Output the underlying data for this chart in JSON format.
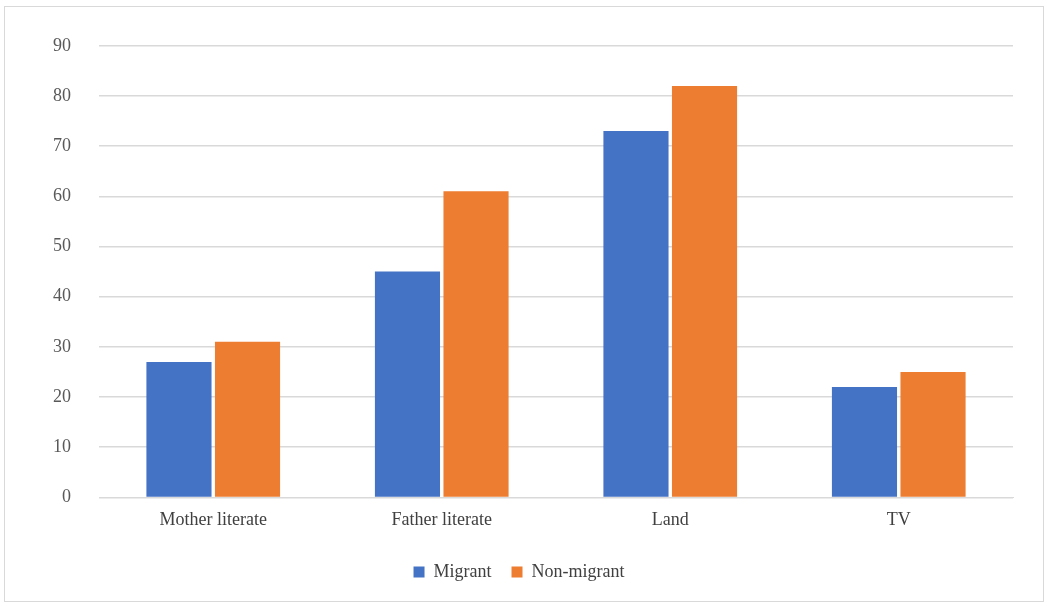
{
  "chart_data": {
    "type": "bar",
    "categories": [
      "Mother literate",
      "Father literate",
      "Land",
      "TV"
    ],
    "series": [
      {
        "name": "Migrant",
        "color": "#4472c4",
        "values": [
          27,
          45,
          73,
          22
        ]
      },
      {
        "name": "Non-migrant",
        "color": "#ed7d31",
        "values": [
          31,
          61,
          82,
          25
        ]
      }
    ],
    "ylim": [
      0,
      90
    ],
    "yticks": [
      0,
      10,
      20,
      30,
      40,
      50,
      60,
      70,
      80,
      90
    ],
    "grid": "y",
    "legend": "bottom"
  }
}
